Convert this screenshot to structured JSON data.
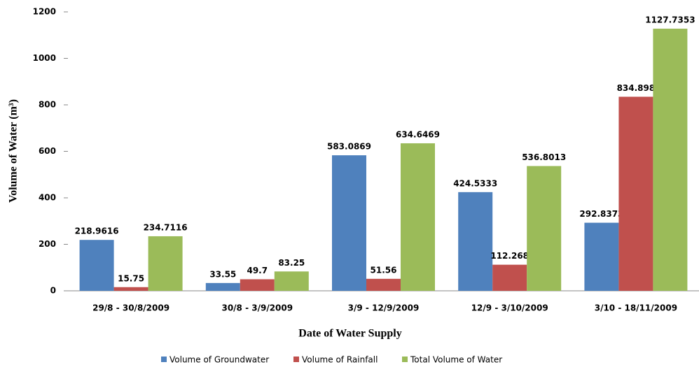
{
  "chart_data": {
    "type": "bar",
    "x_label": "Date of Water Supply",
    "y_label": "Volume of  Water (m³)",
    "categories": [
      "29/8 - 30/8/2009",
      "30/8 - 3/9/2009",
      "3/9 - 12/9/2009",
      "12/9 - 3/10/2009",
      "3/10 - 18/11/2009"
    ],
    "series": [
      {
        "name": "Volume of Groundwater",
        "color": "#4f81bd",
        "values": [
          218.9616,
          33.55,
          583.0869,
          424.5333,
          292.8373
        ]
      },
      {
        "name": "Volume of Rainfall",
        "color": "#c0504d",
        "values": [
          15.75,
          49.7,
          51.56,
          112.268,
          834.898
        ]
      },
      {
        "name": "Total Volume of Water",
        "color": "#9bbb59",
        "values": [
          234.7116,
          83.25,
          634.6469,
          536.8013,
          1127.7353
        ]
      }
    ],
    "ylim": [
      0,
      1200
    ],
    "yticks": [
      0,
      200,
      400,
      600,
      800,
      1000,
      1200
    ],
    "grid": false,
    "legend": "bottom"
  }
}
